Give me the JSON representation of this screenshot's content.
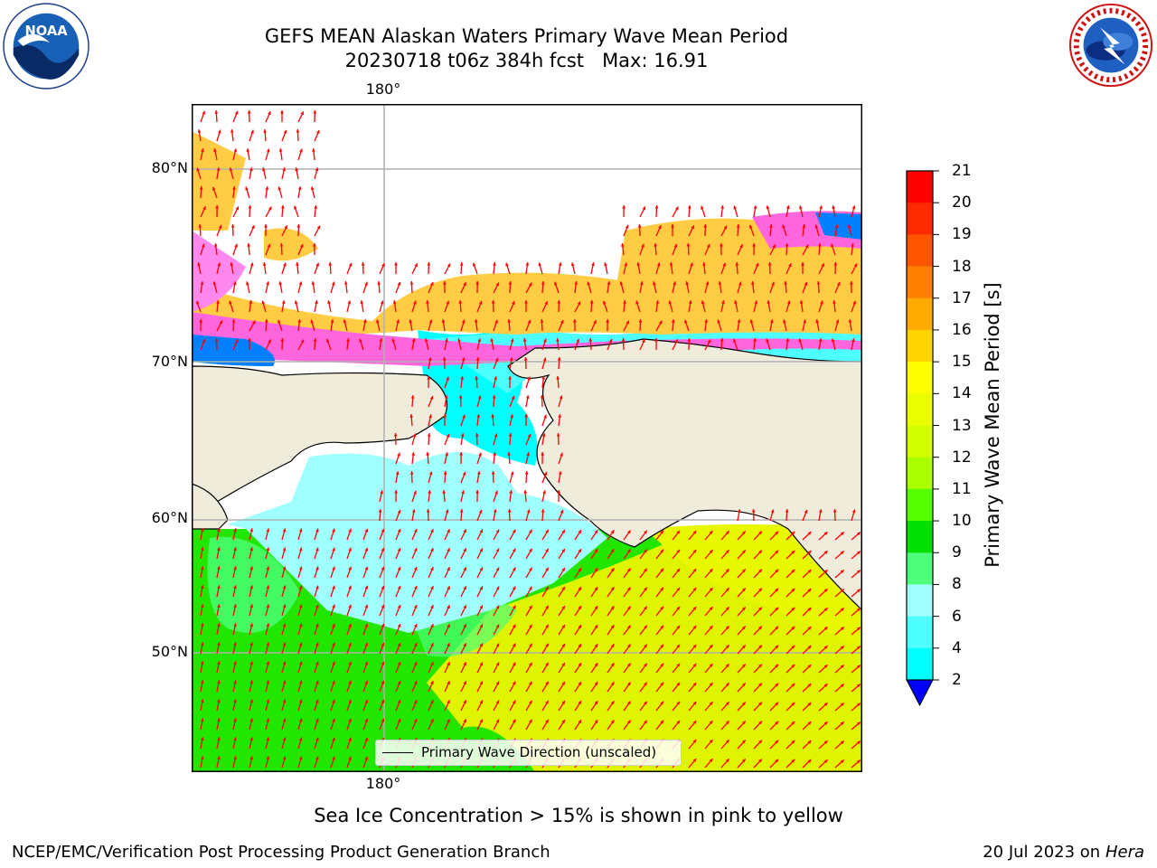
{
  "header": {
    "title_line1": "GEFS MEAN Alaskan Waters Primary Wave Mean Period",
    "title_line2": "20230718 t06z 384h fcst   Max: 16.91"
  },
  "logos": {
    "noaa": {
      "icon": "noaa-logo",
      "text": "NOAA"
    },
    "nws": {
      "icon": "nws-logo"
    }
  },
  "map": {
    "latitude_labels": [
      "80°N",
      "70°N",
      "60°N",
      "50°N"
    ],
    "longitude_labels": {
      "top": "180°",
      "bottom": "180°"
    },
    "legend": "Primary Wave Direction (unscaled)",
    "colors": {
      "land": "#efecdc",
      "ocean_green": "#21e600",
      "ocean_yellow": "#e0f400",
      "arrow": "#ff0000",
      "gridline": "#b0b0b0"
    }
  },
  "colorbar": {
    "label": "Primary Wave Mean Period [s]",
    "ticks": [
      "21",
      "20",
      "19",
      "18",
      "17",
      "16",
      "15",
      "14",
      "13",
      "12",
      "11",
      "10",
      "9",
      "8",
      "6",
      "4",
      "2"
    ],
    "colors": [
      "#ff0000",
      "#ff2a00",
      "#ff5500",
      "#ff7f00",
      "#ffaa00",
      "#ffd400",
      "#ffff00",
      "#eaff00",
      "#d4ff00",
      "#aaff00",
      "#55ff00",
      "#00e000",
      "#4dff7a",
      "#a0ffff",
      "#4dffff",
      "#00ffff",
      "#00ddff",
      "#0080ff"
    ],
    "extend_color": "#0000ff"
  },
  "notes": {
    "ice": "Sea Ice Concentration > 15% is shown in pink to yellow",
    "footer_left": "NCEP/EMC/Verification Post Processing Product Generation Branch",
    "footer_date": "20 Jul 2023 on ",
    "footer_machine": "Hera"
  }
}
